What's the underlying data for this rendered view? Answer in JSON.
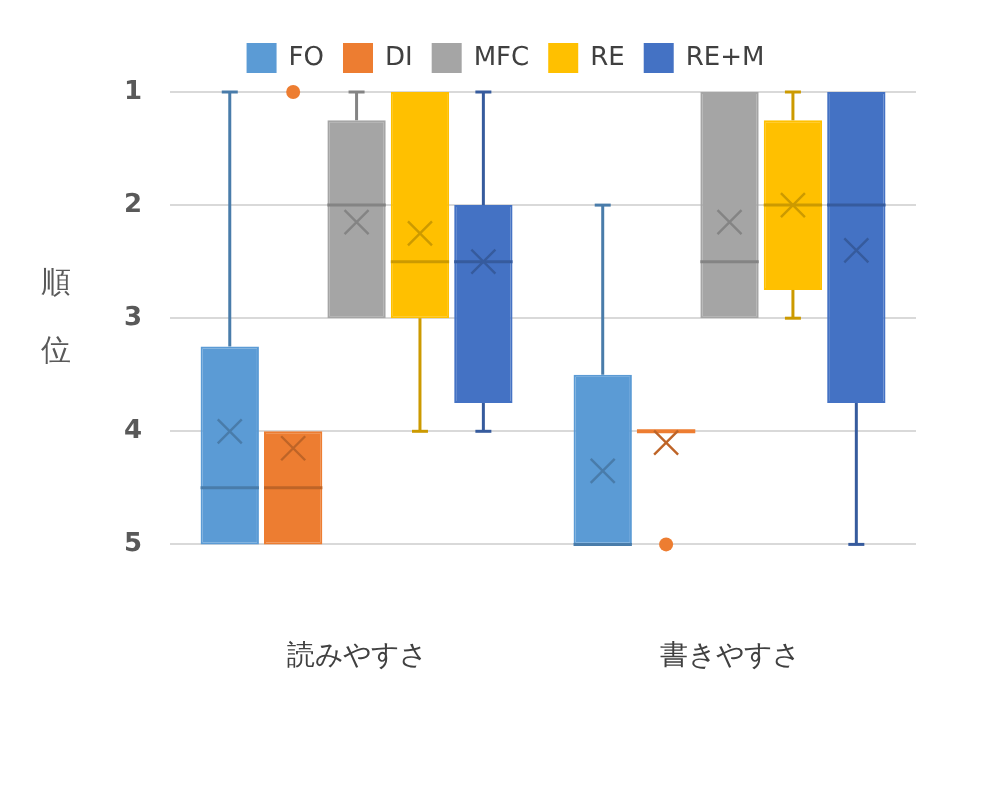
{
  "chart_data": {
    "type": "box",
    "ylabel": "順位",
    "categories": [
      "読みやすさ",
      "書きやすさ"
    ],
    "ylim": [
      5,
      1
    ],
    "yticks": [
      1,
      2,
      3,
      4,
      5
    ],
    "grid": "y",
    "legend": "top",
    "marker": "cross",
    "series": [
      {
        "name": "FO",
        "color": "#5b9bd5",
        "boxes": [
          {
            "low": 1,
            "q1": 3.25,
            "median": 4.5,
            "q3": 5,
            "high": 5,
            "mean": 4
          },
          {
            "low": 2,
            "q1": 3.5,
            "median": 5,
            "q3": 5,
            "high": 5,
            "mean": 4.35
          }
        ]
      },
      {
        "name": "DI",
        "color": "#ed7d31",
        "boxes": [
          {
            "low": 4,
            "q1": 4,
            "median": 4.5,
            "q3": 5,
            "high": 5,
            "mean": 4.15,
            "outliers": [
              1
            ]
          },
          {
            "low": 4,
            "q1": 4,
            "median": 4,
            "q3": 4,
            "high": 4,
            "mean": 4.1,
            "outliers": [
              5
            ]
          }
        ]
      },
      {
        "name": "MFC",
        "color": "#a5a5a5",
        "boxes": [
          {
            "low": 1,
            "q1": 1.25,
            "median": 2,
            "q3": 3,
            "high": 3,
            "mean": 2.15
          },
          {
            "low": 1,
            "q1": 1,
            "median": 2.5,
            "q3": 3,
            "high": 3,
            "mean": 2.15
          }
        ]
      },
      {
        "name": "RE",
        "color": "#ffc000",
        "boxes": [
          {
            "low": 1,
            "q1": 1,
            "median": 2.5,
            "q3": 3,
            "high": 4,
            "mean": 2.25
          },
          {
            "low": 1,
            "q1": 1.25,
            "median": 2,
            "q3": 2.75,
            "high": 3,
            "mean": 2
          }
        ]
      },
      {
        "name": "RE+M",
        "color": "#4472c4",
        "boxes": [
          {
            "low": 1,
            "q1": 2,
            "median": 2.5,
            "q3": 3.75,
            "high": 4,
            "mean": 2.5
          },
          {
            "low": 1,
            "q1": 1,
            "median": 2,
            "q3": 3.75,
            "high": 5,
            "mean": 2.4
          }
        ]
      }
    ]
  }
}
